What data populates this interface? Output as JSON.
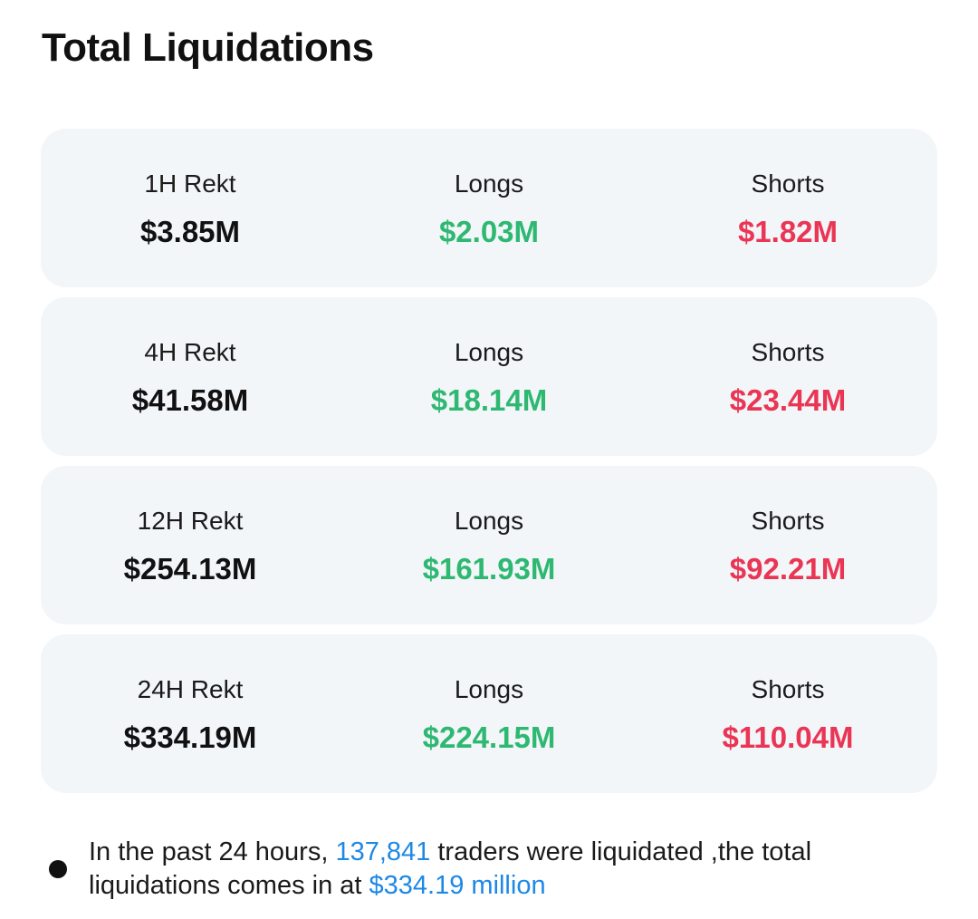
{
  "page": {
    "title": "Total Liquidations"
  },
  "colors": {
    "background": "#ffffff",
    "card_background": "#f2f6f9",
    "longs": "#2eb872",
    "shorts": "#ea3554",
    "highlight": "#1e88e5",
    "text": "#111111"
  },
  "cards": [
    {
      "period_label": "1H Rekt",
      "total": "$3.85M",
      "longs_label": "Longs",
      "longs": "$2.03M",
      "shorts_label": "Shorts",
      "shorts": "$1.82M"
    },
    {
      "period_label": "4H Rekt",
      "total": "$41.58M",
      "longs_label": "Longs",
      "longs": "$18.14M",
      "shorts_label": "Shorts",
      "shorts": "$23.44M"
    },
    {
      "period_label": "12H Rekt",
      "total": "$254.13M",
      "longs_label": "Longs",
      "longs": "$161.93M",
      "shorts_label": "Shorts",
      "shorts": "$92.21M"
    },
    {
      "period_label": "24H Rekt",
      "total": "$334.19M",
      "longs_label": "Longs",
      "longs": "$224.15M",
      "shorts_label": "Shorts",
      "shorts": "$110.04M"
    }
  ],
  "summary": {
    "prefix": "In the past 24 hours, ",
    "traders_count": "137,841",
    "middle": " traders were liquidated ,the total liquidations comes in at ",
    "total_amount": "$334.19 million"
  }
}
